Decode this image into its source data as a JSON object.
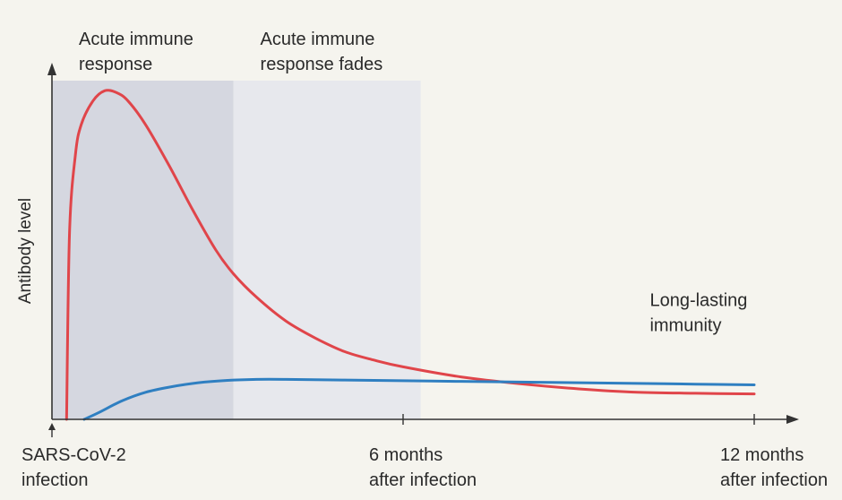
{
  "chart_data": {
    "type": "line",
    "title": "",
    "ylabel": "Antibody level",
    "xlim": [
      0,
      12.4
    ],
    "ylim": [
      0,
      1
    ],
    "grid": false,
    "x_ticks": [
      {
        "x": 0,
        "line1": "SARS-CoV-2",
        "line2": "infection"
      },
      {
        "x": 6,
        "line1": "6 months",
        "line2": "after infection"
      },
      {
        "x": 12,
        "line1": "12 months",
        "line2": "after infection"
      }
    ],
    "regions": [
      {
        "from": 0,
        "to": 3.1,
        "line1": "Acute immune",
        "line2": "response",
        "color": "#d5d7e0"
      },
      {
        "from": 3.1,
        "to": 6.3,
        "line1": "Acute immune",
        "line2": "response fades",
        "color": "#e7e8ed"
      }
    ],
    "annotation": {
      "line1": "Long-lasting",
      "line2": "immunity",
      "x": 10.4,
      "y": 0.33
    },
    "series": [
      {
        "color": "#e0454a",
        "x": [
          0.25,
          0.3,
          0.4,
          0.5,
          0.7,
          0.9,
          1.1,
          1.3,
          1.6,
          2.0,
          2.4,
          2.8,
          3.1,
          3.5,
          4.0,
          4.5,
          5.0,
          5.5,
          6.0,
          7.0,
          8.0,
          9.0,
          10.0,
          11.0,
          12.0
        ],
        "y": [
          0.0,
          0.55,
          0.78,
          0.87,
          0.94,
          0.97,
          0.965,
          0.94,
          0.87,
          0.75,
          0.62,
          0.5,
          0.43,
          0.36,
          0.29,
          0.24,
          0.2,
          0.175,
          0.155,
          0.125,
          0.105,
          0.09,
          0.08,
          0.077,
          0.075
        ]
      },
      {
        "color": "#2f7fc1",
        "x": [
          0.55,
          0.8,
          1.2,
          1.6,
          2.0,
          2.5,
          3.0,
          3.5,
          4.0,
          5.0,
          6.0,
          7.0,
          8.0,
          9.0,
          10.0,
          11.0,
          12.0
        ],
        "y": [
          0.0,
          0.02,
          0.055,
          0.08,
          0.095,
          0.108,
          0.115,
          0.118,
          0.118,
          0.116,
          0.114,
          0.112,
          0.11,
          0.108,
          0.106,
          0.104,
          0.102
        ]
      }
    ]
  }
}
